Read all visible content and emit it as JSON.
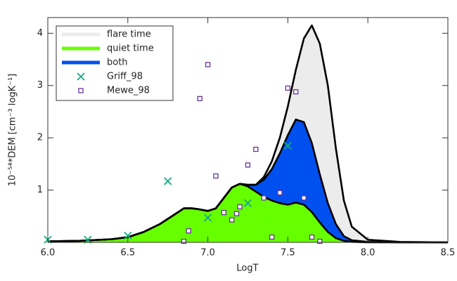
{
  "chart_data": {
    "type": "area",
    "x_label": "LogT",
    "y_label": "10⁻⁵⁴*DEM [cm⁻³ logK⁻¹]",
    "xlim": [
      6.0,
      8.5
    ],
    "ylim": [
      0,
      4.3
    ],
    "xticks": [
      {
        "value": 6.0,
        "label": "6.0"
      },
      {
        "value": 6.5,
        "label": "6.5"
      },
      {
        "value": 7.0,
        "label": "7.0"
      },
      {
        "value": 7.5,
        "label": "7.5"
      },
      {
        "value": 8.0,
        "label": "8.0"
      },
      {
        "value": 8.5,
        "label": "8.5"
      }
    ],
    "yticks": [
      1,
      2,
      3,
      4
    ],
    "legend": "upper left",
    "x": [
      6.0,
      6.2,
      6.4,
      6.5,
      6.6,
      6.7,
      6.8,
      6.85,
      6.9,
      6.95,
      7.0,
      7.05,
      7.1,
      7.15,
      7.2,
      7.25,
      7.3,
      7.35,
      7.4,
      7.45,
      7.5,
      7.55,
      7.6,
      7.65,
      7.7,
      7.75,
      7.8,
      7.85,
      7.9,
      8.0,
      8.2,
      8.5
    ],
    "series": [
      {
        "name": "flare time",
        "type": "area",
        "color": "#ececec",
        "values": [
          0.02,
          0.03,
          0.06,
          0.1,
          0.2,
          0.35,
          0.55,
          0.65,
          0.65,
          0.63,
          0.6,
          0.65,
          0.85,
          1.05,
          1.12,
          1.1,
          1.1,
          1.25,
          1.55,
          2.0,
          2.6,
          3.3,
          3.9,
          4.15,
          3.8,
          3.0,
          1.8,
          0.8,
          0.3,
          0.05,
          0.01,
          0
        ]
      },
      {
        "name": "quiet time",
        "type": "area",
        "color": "#66ff00",
        "values": [
          0.02,
          0.03,
          0.06,
          0.1,
          0.2,
          0.35,
          0.55,
          0.65,
          0.65,
          0.63,
          0.6,
          0.65,
          0.85,
          1.05,
          1.12,
          1.07,
          0.97,
          0.87,
          0.8,
          0.75,
          0.72,
          0.76,
          0.72,
          0.58,
          0.38,
          0.2,
          0.08,
          0.03,
          0.01,
          0,
          0,
          0
        ]
      },
      {
        "name": "both",
        "type": "area",
        "color": "#0050f0",
        "values": [
          0.02,
          0.03,
          0.06,
          0.1,
          0.2,
          0.35,
          0.55,
          0.65,
          0.65,
          0.63,
          0.6,
          0.65,
          0.85,
          1.05,
          1.12,
          1.1,
          1.1,
          1.2,
          1.4,
          1.7,
          2.05,
          2.35,
          2.3,
          1.9,
          1.3,
          0.75,
          0.35,
          0.12,
          0.04,
          0.01,
          0,
          0
        ]
      },
      {
        "name": "Griff_98",
        "type": "scatter",
        "marker": "x",
        "color": "#1aa884",
        "x": [
          6.0,
          6.25,
          6.5,
          6.75,
          7.0,
          7.25,
          7.5
        ],
        "values": [
          0.05,
          0.05,
          0.13,
          1.17,
          0.47,
          0.75,
          1.85
        ]
      },
      {
        "name": "Mewe_98",
        "type": "scatter",
        "marker": "square",
        "color": "#663399",
        "x": [
          6.85,
          6.88,
          6.95,
          7.0,
          7.05,
          7.1,
          7.15,
          7.18,
          7.2,
          7.25,
          7.3,
          7.35,
          7.4,
          7.45,
          7.5,
          7.55,
          7.6,
          7.65,
          7.7
        ],
        "values": [
          0.02,
          0.22,
          2.75,
          3.4,
          1.27,
          0.57,
          0.43,
          0.55,
          0.68,
          1.48,
          1.78,
          0.85,
          0.1,
          0.95,
          2.95,
          2.88,
          0.85,
          0.1,
          0.02
        ]
      }
    ]
  }
}
